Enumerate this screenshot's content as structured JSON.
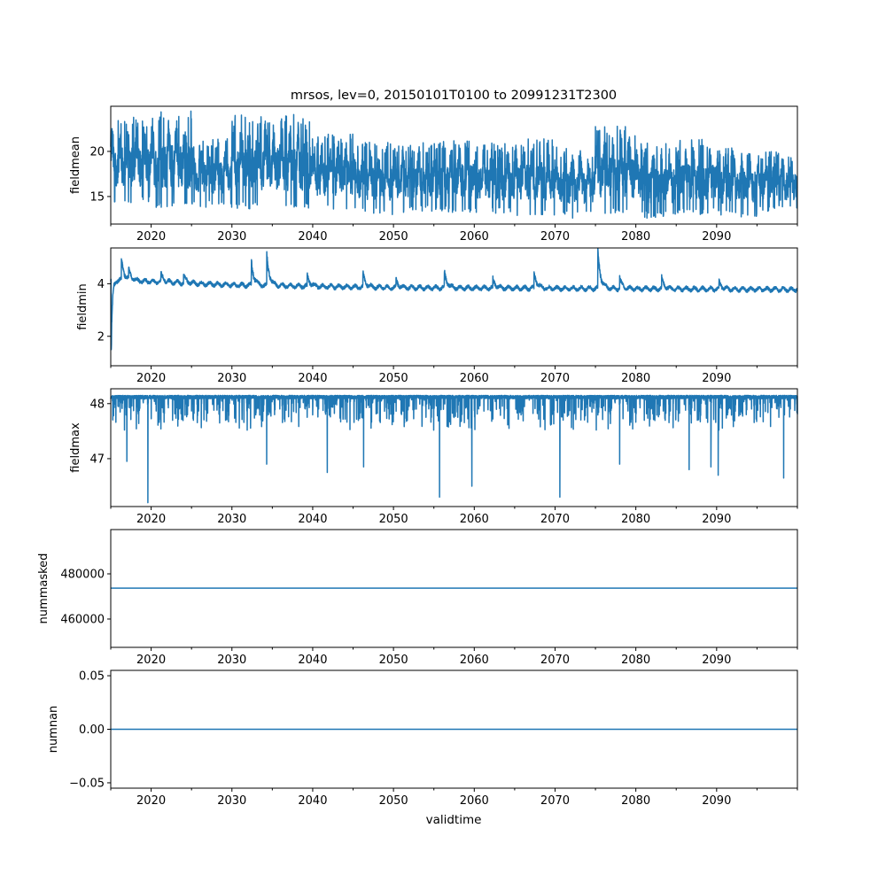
{
  "chart_data": {
    "type": "line",
    "title": "mrsos, lev=0, 20150101T0100 to 20991231T2300",
    "xlabel": "validtime",
    "xlim": [
      2015,
      2100
    ],
    "xticks": [
      2020,
      2030,
      2040,
      2050,
      2060,
      2070,
      2080,
      2090
    ],
    "xtick_labels": [
      "2020",
      "2030",
      "2040",
      "2050",
      "2060",
      "2070",
      "2080",
      "2090"
    ],
    "minor_xticks": [
      2015,
      2025,
      2035,
      2045,
      2055,
      2065,
      2075,
      2085,
      2095,
      2100
    ],
    "line_color": "#1f77b4",
    "grid": false,
    "panels": [
      {
        "ylabel": "fieldmean",
        "ylim": [
          11.95,
          25.0
        ],
        "yticks": [
          15,
          20
        ],
        "ytick_labels": [
          "15",
          "20"
        ],
        "kind": "seasonal",
        "pentad_start_years": [
          2015,
          2020,
          2025,
          2030,
          2035,
          2040,
          2045,
          2050,
          2055,
          2060,
          2065,
          2070,
          2075,
          2080,
          2085,
          2090,
          2095
        ],
        "annual_peak_by_pentad": [
          23.8,
          24.5,
          21.5,
          24.2,
          24.2,
          22.0,
          21.0,
          21.0,
          21.5,
          21.0,
          21.5,
          20.5,
          22.8,
          21.0,
          21.5,
          20.5,
          20.0
        ],
        "annual_trough_by_pentad": [
          14.2,
          13.8,
          13.8,
          13.6,
          13.5,
          13.4,
          13.0,
          13.2,
          13.2,
          13.0,
          12.9,
          12.6,
          12.9,
          12.6,
          13.0,
          12.7,
          13.2
        ]
      },
      {
        "ylabel": "fieldmin",
        "ylim": [
          0.88,
          5.36
        ],
        "yticks": [
          2,
          4
        ],
        "ytick_labels": [
          "2",
          "4"
        ],
        "kind": "baseline_events",
        "baseline": [
          [
            2015,
            4.15
          ],
          [
            2030,
            3.95
          ],
          [
            2050,
            3.85
          ],
          [
            2100,
            3.78
          ]
        ],
        "events": [
          [
            2015.05,
            -2.8
          ],
          [
            2016.3,
            0.85
          ],
          [
            2017.2,
            0.4
          ],
          [
            2021.2,
            0.35
          ],
          [
            2024.0,
            0.3
          ],
          [
            2032.4,
            0.9
          ],
          [
            2034.3,
            1.2
          ],
          [
            2039.3,
            0.45
          ],
          [
            2046.2,
            0.55
          ],
          [
            2050.3,
            0.3
          ],
          [
            2056.3,
            0.6
          ],
          [
            2062.3,
            0.35
          ],
          [
            2067.4,
            0.6
          ],
          [
            2075.3,
            1.35
          ],
          [
            2078.0,
            0.4
          ],
          [
            2083.2,
            0.4
          ],
          [
            2090.3,
            0.3
          ]
        ]
      },
      {
        "ylabel": "fieldmax",
        "ylim": [
          46.13,
          48.27
        ],
        "yticks": [
          47,
          48
        ],
        "ytick_labels": [
          "47",
          "48"
        ],
        "kind": "ceiling_dips",
        "ceiling": 48.15,
        "typical_dip_min": 47.45,
        "events": [
          [
            2017.0,
            46.95
          ],
          [
            2019.6,
            46.2
          ],
          [
            2034.3,
            46.9
          ],
          [
            2041.8,
            46.75
          ],
          [
            2046.3,
            46.85
          ],
          [
            2055.7,
            46.3
          ],
          [
            2059.7,
            46.5
          ],
          [
            2070.6,
            46.3
          ],
          [
            2078.0,
            46.9
          ],
          [
            2086.6,
            46.8
          ],
          [
            2089.3,
            46.85
          ],
          [
            2090.2,
            46.7
          ],
          [
            2098.3,
            46.65
          ]
        ]
      },
      {
        "ylabel": "nummasked",
        "ylim": [
          447450,
          499600
        ],
        "yticks": [
          460000,
          480000
        ],
        "ytick_labels": [
          "460000",
          "480000"
        ],
        "kind": "constant",
        "value": 473700
      },
      {
        "ylabel": "numnan",
        "ylim": [
          -0.055,
          0.055
        ],
        "yticks": [
          -0.05,
          0.0,
          0.05
        ],
        "ytick_labels": [
          "−0.05",
          "0.00",
          "0.05"
        ],
        "kind": "constant",
        "value": 0
      }
    ]
  }
}
